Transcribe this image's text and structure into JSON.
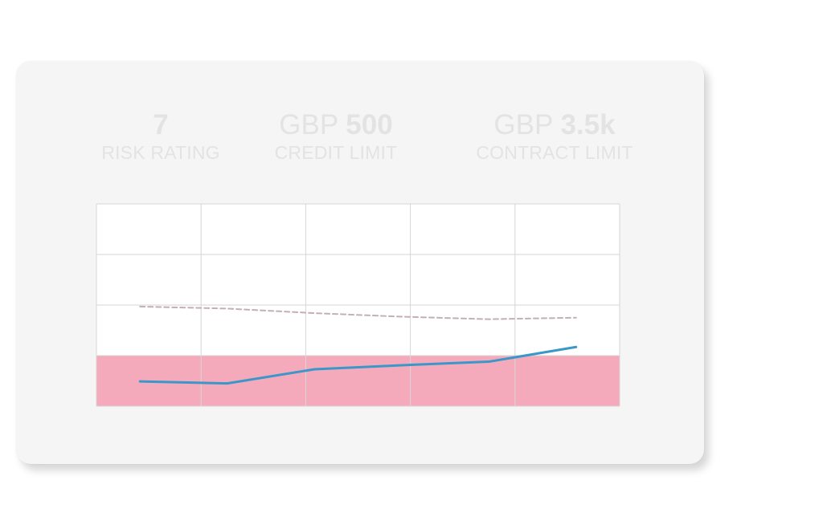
{
  "stats": {
    "risk": {
      "value": "7",
      "label": "RISK RATING"
    },
    "credit": {
      "currency": "GBP",
      "amount": "500",
      "label": "CREDIT LIMIT"
    },
    "contract": {
      "currency": "GBP",
      "amount": "3.5k",
      "label": "CONTRACT LIMIT"
    }
  },
  "colors": {
    "card": "#f5f5f5",
    "stat_text": "#e3e3e3",
    "band": "#f5aabc",
    "grid": "#d6d6d6",
    "solid_line": "#3b97c9",
    "dashed_line": "#c4afb4"
  },
  "chart_data": {
    "type": "line",
    "x": [
      0,
      1,
      2,
      3,
      4,
      5
    ],
    "series": [
      {
        "values": [
          0.49,
          0.45,
          0.73,
          0.81,
          0.88,
          1.17
        ],
        "style": "solid"
      },
      {
        "values": [
          1.97,
          1.93,
          1.84,
          1.77,
          1.72,
          1.75
        ],
        "style": "dashed"
      }
    ],
    "band": {
      "from": 0,
      "to": 1
    },
    "xlim": [
      -0.5,
      5.5
    ],
    "ylim": [
      0,
      4
    ],
    "grid": true,
    "columns": 5,
    "rows": 4
  }
}
